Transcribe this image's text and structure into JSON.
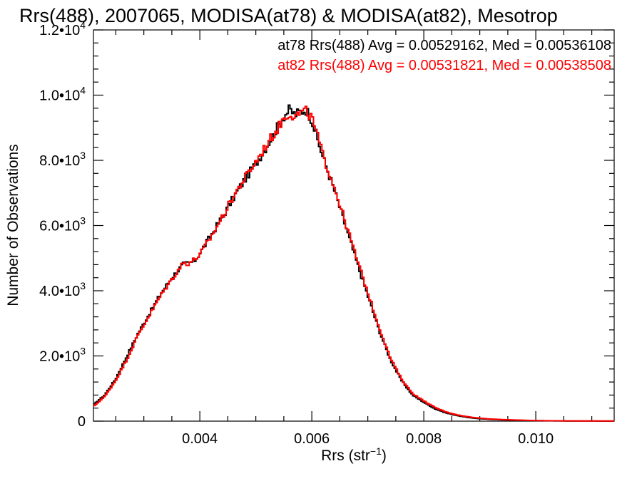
{
  "chart_data": {
    "type": "line",
    "title": "Rrs(488), 2007065, MODISA(at78) & MODISA(at82), Mesotrop",
    "xlabel": "Rrs (str",
    "xlabel_sup": "−1",
    "xlabel_end": ")",
    "ylabel": "Number of Observations",
    "xlim": [
      0.0021,
      0.0114
    ],
    "ylim": [
      0,
      12000
    ],
    "x_ticks": [
      {
        "value": 0.004,
        "label": "0.004"
      },
      {
        "value": 0.006,
        "label": "0.006"
      },
      {
        "value": 0.008,
        "label": "0.008"
      },
      {
        "value": 0.01,
        "label": "0.010"
      }
    ],
    "y_ticks": [
      {
        "value": 0,
        "label": "0",
        "exp": ""
      },
      {
        "value": 2000,
        "label": "2.0•10",
        "exp": "3"
      },
      {
        "value": 4000,
        "label": "4.0•10",
        "exp": "3"
      },
      {
        "value": 6000,
        "label": "6.0•10",
        "exp": "3"
      },
      {
        "value": 8000,
        "label": "8.0•10",
        "exp": "3"
      },
      {
        "value": 10000,
        "label": "1.0•10",
        "exp": "4"
      },
      {
        "value": 12000,
        "label": "1.2•10",
        "exp": "4"
      }
    ],
    "grid": false,
    "legend_position": "top-right",
    "annotations": [
      "at78 Rrs(488) Avg = 0.00529162, Med = 0.00536108",
      "at82 Rrs(488) Avg = 0.00531821, Med = 0.00538508"
    ],
    "series": [
      {
        "color": "#000000",
        "x": [
          0.0021,
          0.0023,
          0.0025,
          0.0027,
          0.0029,
          0.0031,
          0.0033,
          0.0035,
          0.0036,
          0.0037,
          0.0038,
          0.0039,
          0.004,
          0.0042,
          0.0044,
          0.0046,
          0.0048,
          0.005,
          0.0052,
          0.0054,
          0.0055,
          0.0056,
          0.0057,
          0.0058,
          0.0059,
          0.006,
          0.0061,
          0.0062,
          0.0064,
          0.0066,
          0.0068,
          0.007,
          0.0072,
          0.0074,
          0.0076,
          0.0078,
          0.008,
          0.0082,
          0.0084,
          0.0086,
          0.0088,
          0.009,
          0.0092,
          0.0094,
          0.0096,
          0.0098,
          0.01,
          0.0104,
          0.0108,
          0.0114
        ],
        "y": [
          500,
          800,
          1300,
          2000,
          2700,
          3300,
          3900,
          4400,
          4600,
          4800,
          4850,
          4900,
          5150,
          5700,
          6250,
          6850,
          7400,
          7900,
          8450,
          9050,
          9350,
          9550,
          9400,
          9500,
          9550,
          9250,
          8650,
          8100,
          7100,
          6000,
          4900,
          3850,
          2800,
          1900,
          1250,
          800,
          580,
          380,
          250,
          170,
          110,
          75,
          55,
          40,
          30,
          22,
          15,
          8,
          5,
          3
        ]
      },
      {
        "color": "#ff0000",
        "x": [
          0.0021,
          0.0023,
          0.0025,
          0.0027,
          0.0029,
          0.0031,
          0.0033,
          0.0035,
          0.0036,
          0.0037,
          0.0038,
          0.0039,
          0.004,
          0.0042,
          0.0044,
          0.0046,
          0.0048,
          0.005,
          0.0052,
          0.0054,
          0.0055,
          0.0056,
          0.0057,
          0.0058,
          0.0059,
          0.006,
          0.0061,
          0.0062,
          0.0064,
          0.0066,
          0.0068,
          0.007,
          0.0072,
          0.0074,
          0.0076,
          0.0078,
          0.008,
          0.0082,
          0.0084,
          0.0086,
          0.0088,
          0.009,
          0.0092,
          0.0094,
          0.0096,
          0.0098,
          0.01,
          0.0104,
          0.0108,
          0.0114
        ],
        "y": [
          450,
          750,
          1250,
          1900,
          2650,
          3250,
          3850,
          4350,
          4600,
          4850,
          4850,
          4950,
          5100,
          5650,
          6250,
          6900,
          7450,
          7950,
          8500,
          9000,
          9300,
          9450,
          9350,
          9450,
          9500,
          9300,
          8750,
          8150,
          7200,
          6100,
          5000,
          3950,
          2900,
          1950,
          1300,
          850,
          620,
          420,
          280,
          190,
          130,
          90,
          65,
          48,
          36,
          26,
          18,
          10,
          6,
          4
        ]
      }
    ]
  }
}
